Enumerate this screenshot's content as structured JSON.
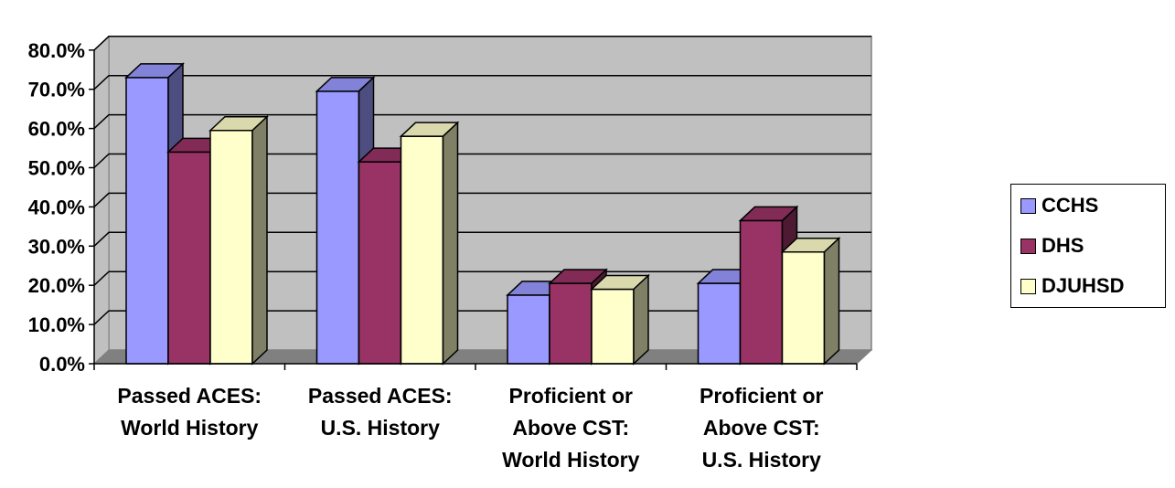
{
  "chart_data": {
    "type": "bar",
    "title": "",
    "xlabel": "",
    "ylabel": "",
    "ylim": [
      0,
      80
    ],
    "y_tick_labels": [
      "0.0%",
      "10.0%",
      "20.0%",
      "30.0%",
      "40.0%",
      "50.0%",
      "60.0%",
      "70.0%",
      "80.0%"
    ],
    "grid": true,
    "legend_position": "right",
    "categories": [
      [
        "Passed ACES:",
        "World History"
      ],
      [
        "Passed ACES:",
        "U.S. History"
      ],
      [
        "Proficient or",
        "Above CST:",
        "World History"
      ],
      [
        "Proficient or",
        "Above CST:",
        "U.S. History"
      ]
    ],
    "series": [
      {
        "name": "CCHS",
        "color": "#9999ff",
        "values": [
          73,
          69.5,
          17.5,
          20.5
        ]
      },
      {
        "name": "DHS",
        "color": "#993366",
        "values": [
          54,
          51.5,
          20.5,
          36.5
        ]
      },
      {
        "name": "DJUHSD",
        "color": "#ffffcc",
        "values": [
          59.5,
          58,
          19,
          28.5
        ]
      }
    ],
    "plot_background": "#c0c0c0"
  }
}
